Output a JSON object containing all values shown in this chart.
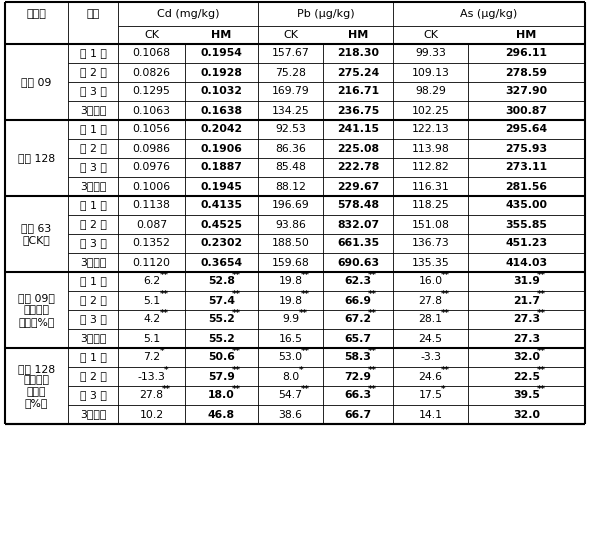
{
  "sections": [
    {
      "group": "秀汄 09",
      "rows": [
        [
          "第 1 年",
          "0.1068",
          "0.1954",
          "157.67",
          "218.30",
          "99.33",
          "296.11"
        ],
        [
          "第 2 年",
          "0.0826",
          "0.1928",
          "75.28",
          "275.24",
          "109.13",
          "278.59"
        ],
        [
          "第 3 年",
          "0.1295",
          "0.1032",
          "169.79",
          "216.71",
          "98.29",
          "327.90"
        ],
        [
          "3年平均",
          "0.1063",
          "0.1638",
          "134.25",
          "236.75",
          "102.25",
          "300.87"
        ]
      ]
    },
    {
      "group": "秀汄 128",
      "rows": [
        [
          "第 1 年",
          "0.1056",
          "0.2042",
          "92.53",
          "241.15",
          "122.13",
          "295.64"
        ],
        [
          "第 2 年",
          "0.0986",
          "0.1906",
          "86.36",
          "225.08",
          "113.98",
          "275.93"
        ],
        [
          "第 3 年",
          "0.0976",
          "0.1887",
          "85.48",
          "222.78",
          "112.82",
          "273.11"
        ],
        [
          "3年平均",
          "0.1006",
          "0.1945",
          "88.12",
          "229.67",
          "116.31",
          "281.56"
        ]
      ]
    },
    {
      "group": "秀汄 63\n（CK）",
      "rows": [
        [
          "第 1 年",
          "0.1138",
          "0.4135",
          "196.69",
          "578.48",
          "118.25",
          "435.00"
        ],
        [
          "第 2 年",
          "0.087",
          "0.4525",
          "93.86",
          "832.07",
          "151.08",
          "355.85"
        ],
        [
          "第 3 年",
          "0.1352",
          "0.2302",
          "188.50",
          "661.35",
          "136.73",
          "451.23"
        ],
        [
          "3年平均",
          "0.1120",
          "0.3654",
          "159.68",
          "690.63",
          "135.35",
          "414.03"
        ]
      ]
    },
    {
      "group": "秀汄 09较\n对照下降\n幅度（%）",
      "rows": [
        [
          "第 1 年",
          "6.2**",
          "52.8**",
          "19.8**",
          "62.3**",
          "16.0**",
          "31.9**"
        ],
        [
          "第 2 年",
          "5.1**",
          "57.4**",
          "19.8**",
          "66.9**",
          "27.8**",
          "21.7**"
        ],
        [
          "第 3 年",
          "4.2**",
          "55.2**",
          "9.9**",
          "67.2**",
          "28.1**",
          "27.3**"
        ],
        [
          "3年平均",
          "5.1",
          "55.2",
          "16.5",
          "65.7",
          "24.5",
          "27.3"
        ]
      ]
    },
    {
      "group": "秀汄 128\n较对照下\n降幅度\n（%）",
      "rows": [
        [
          "第 1 年",
          "7.2*",
          "50.6**",
          "53.0**",
          "58.3**",
          "-3.3",
          "32.0**"
        ],
        [
          "第 2 年",
          "-13.3*",
          "57.9**",
          "8.0*",
          "72.9**",
          "24.6**",
          "22.5**"
        ],
        [
          "第 3 年",
          "27.8**",
          "18.0**",
          "54.7**",
          "66.3**",
          "17.5*",
          "39.5**"
        ],
        [
          "3年平均",
          "10.2",
          "46.8",
          "38.6",
          "66.7",
          "14.1",
          "32.0"
        ]
      ]
    }
  ],
  "header1_labels": [
    "基因型",
    "年度",
    "Cd (mg/kg)",
    "Pb (μg/kg)",
    "As (μg/kg)"
  ],
  "header2_labels": [
    "CK",
    "HM",
    "CK",
    "HM",
    "CK",
    "HM"
  ],
  "figsize": [
    5.9,
    5.38
  ],
  "dpi": 100
}
